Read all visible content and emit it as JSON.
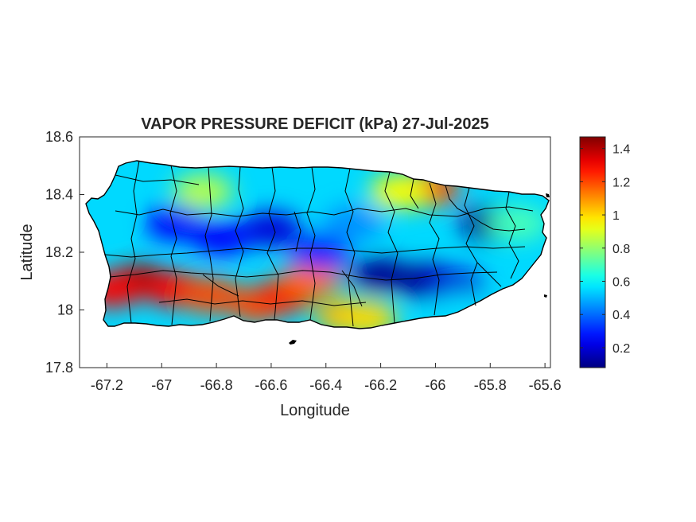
{
  "chart_data": {
    "type": "heatmap",
    "title": "VAPOR PRESSURE DEFICIT (kPa) 27-Jul-2025",
    "xlabel": "Longitude",
    "ylabel": "Latitude",
    "xlim": [
      -67.3,
      -65.58
    ],
    "ylim": [
      17.8,
      18.6
    ],
    "x_ticks": [
      -67.2,
      -67.0,
      -66.8,
      -66.6,
      -66.4,
      -66.2,
      -66.0,
      -65.8,
      -65.6
    ],
    "x_tick_labels": [
      "-67.2",
      "-67",
      "-66.8",
      "-66.6",
      "-66.4",
      "-66.2",
      "-66",
      "-65.8",
      "-65.6"
    ],
    "y_ticks": [
      17.8,
      18.0,
      18.2,
      18.4,
      18.6
    ],
    "y_tick_labels": [
      "17.8",
      "18",
      "18.2",
      "18.4",
      "18.6"
    ],
    "grid": false,
    "colorbar": {
      "colormap": "jet",
      "clim": [
        0.08,
        1.47
      ],
      "ticks": [
        0.2,
        0.4,
        0.6,
        0.8,
        1.0,
        1.2,
        1.4
      ],
      "tick_labels": [
        "0.2",
        "0.4",
        "0.6",
        "0.8",
        "1",
        "1.2",
        "1.4"
      ]
    },
    "field_hotspots": [
      {
        "lon": -67.08,
        "lat": 18.1,
        "value": 1.45
      },
      {
        "lon": -67.18,
        "lat": 18.07,
        "value": 1.3
      },
      {
        "lon": -66.95,
        "lat": 18.07,
        "value": 1.3
      },
      {
        "lon": -66.82,
        "lat": 18.05,
        "value": 1.2
      },
      {
        "lon": -66.65,
        "lat": 18.02,
        "value": 1.2
      },
      {
        "lon": -66.55,
        "lat": 18.05,
        "value": 1.25
      },
      {
        "lon": -66.45,
        "lat": 18.11,
        "value": 1.15
      },
      {
        "lon": -66.33,
        "lat": 17.98,
        "value": 1.05
      },
      {
        "lon": -66.25,
        "lat": 17.97,
        "value": 1.0
      },
      {
        "lon": -66.02,
        "lat": 18.42,
        "value": 1.2
      },
      {
        "lon": -66.13,
        "lat": 18.41,
        "value": 0.95
      },
      {
        "lon": -66.85,
        "lat": 18.41,
        "value": 0.85
      },
      {
        "lon": -66.95,
        "lat": 18.3,
        "value": 0.25
      },
      {
        "lon": -66.6,
        "lat": 18.28,
        "value": 0.2
      },
      {
        "lon": -66.78,
        "lat": 18.25,
        "value": 0.25
      },
      {
        "lon": -66.42,
        "lat": 18.2,
        "value": 0.3
      },
      {
        "lon": -66.2,
        "lat": 18.12,
        "value": 0.1
      },
      {
        "lon": -66.03,
        "lat": 18.1,
        "value": 0.1
      },
      {
        "lon": -65.93,
        "lat": 18.08,
        "value": 0.2
      },
      {
        "lon": -65.8,
        "lat": 18.3,
        "value": 0.1
      },
      {
        "lon": -66.3,
        "lat": 18.3,
        "value": 0.45
      },
      {
        "lon": -65.7,
        "lat": 18.3,
        "value": 0.7
      },
      {
        "lon": -67.25,
        "lat": 18.35,
        "value": 0.55
      },
      {
        "lon": -65.9,
        "lat": 18.0,
        "value": 0.55
      }
    ],
    "field_background_value": 0.55
  }
}
